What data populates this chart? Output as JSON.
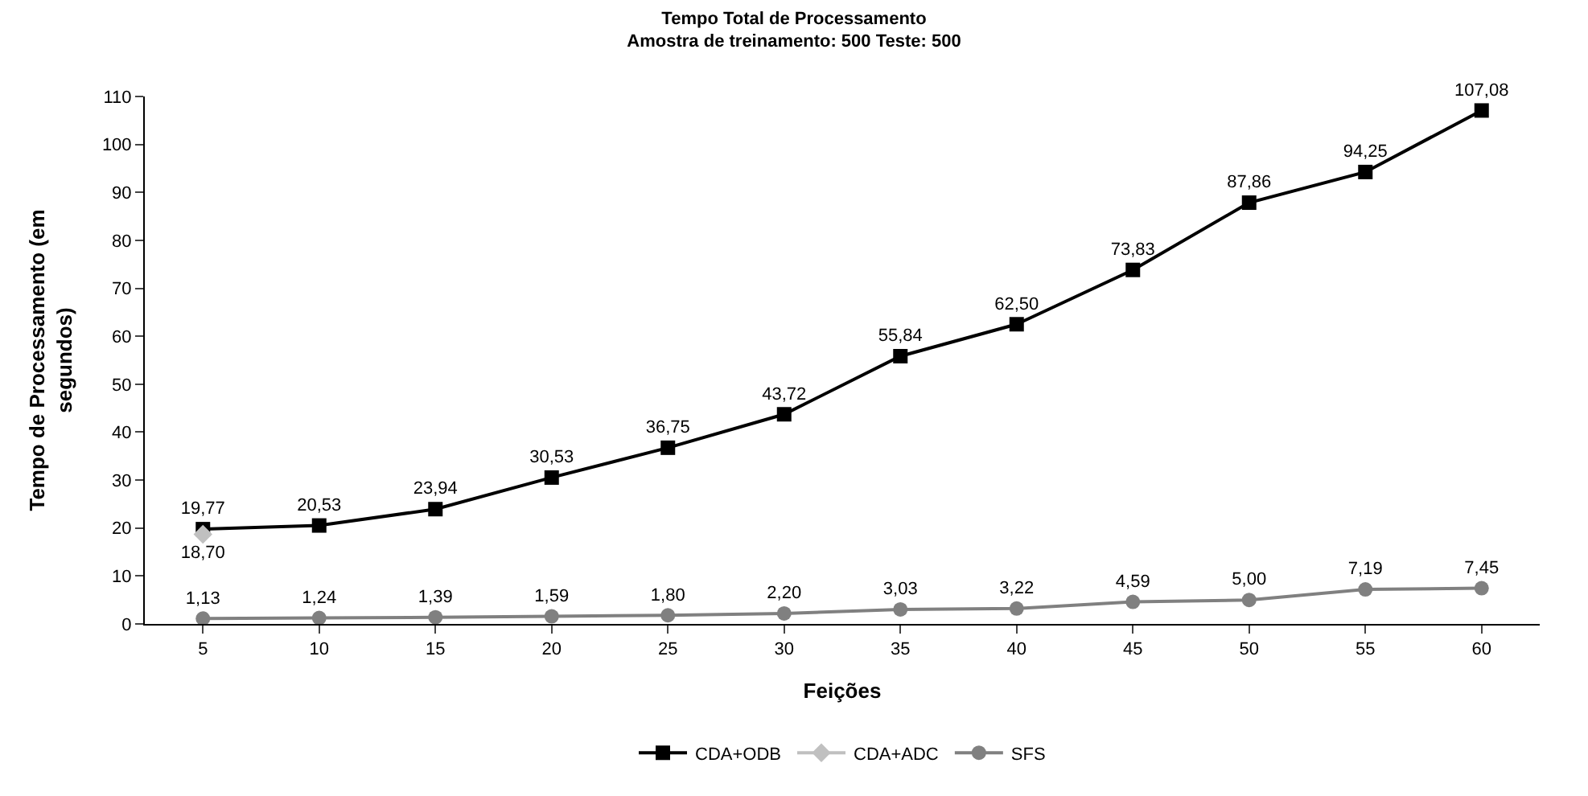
{
  "chart_data": {
    "type": "line",
    "title": "Tempo Total de Processamento",
    "subtitle": "Amostra de treinamento: 500 Teste: 500",
    "xlabel": "Feições",
    "ylabel": "Tempo de Processamento (em segundos)",
    "categories": [
      "5",
      "10",
      "15",
      "20",
      "25",
      "30",
      "35",
      "40",
      "45",
      "50",
      "55",
      "60"
    ],
    "series": [
      {
        "name": "CDA+ODB",
        "color": "#000000",
        "marker": "square",
        "values": [
          19.77,
          20.53,
          23.94,
          30.53,
          36.75,
          43.72,
          55.84,
          62.5,
          73.83,
          87.86,
          94.25,
          107.08
        ],
        "value_labels": [
          "19,77",
          "20,53",
          "23,94",
          "30,53",
          "36,75",
          "43,72",
          "55,84",
          "62,50",
          "73,83",
          "87,86",
          "94,25",
          "107,08"
        ]
      },
      {
        "name": "CDA+ADC",
        "color": "#c0c0c0",
        "marker": "diamond",
        "values": [
          18.7,
          null,
          null,
          null,
          null,
          null,
          null,
          null,
          null,
          null,
          null,
          null
        ],
        "value_labels": [
          "18,70",
          null,
          null,
          null,
          null,
          null,
          null,
          null,
          null,
          null,
          null,
          null
        ]
      },
      {
        "name": "SFS",
        "color": "#808080",
        "marker": "circle",
        "values": [
          1.13,
          1.24,
          1.39,
          1.59,
          1.8,
          2.2,
          3.03,
          3.22,
          4.59,
          5.0,
          7.19,
          7.45
        ],
        "value_labels": [
          "1,13",
          "1,24",
          "1,39",
          "1,59",
          "1,80",
          "2,20",
          "3,03",
          "3,22",
          "4,59",
          "5,00",
          "7,19",
          "7,45"
        ]
      }
    ],
    "ylim": [
      0,
      110
    ],
    "yticks": [
      0,
      10,
      20,
      30,
      40,
      50,
      60,
      70,
      80,
      90,
      100,
      110
    ],
    "grid": false,
    "legend": "bottom",
    "line_style": "solid"
  }
}
